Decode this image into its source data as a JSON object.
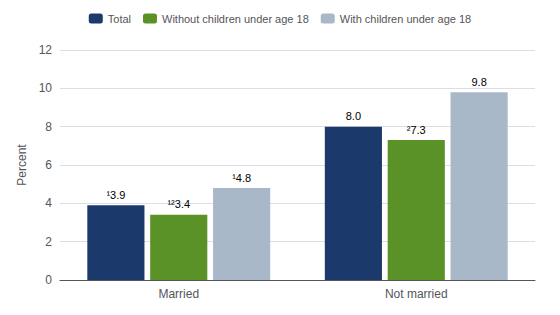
{
  "chart_data": {
    "type": "bar",
    "categories": [
      "Married",
      "Not married"
    ],
    "series": [
      {
        "name": "Total",
        "color": "#1b3a6b",
        "values": [
          3.9,
          8.0
        ],
        "value_labels": [
          "¹3.9",
          "8.0"
        ]
      },
      {
        "name": "Without children under age 18",
        "color": "#5a9227",
        "values": [
          3.4,
          7.3
        ],
        "value_labels": [
          "¹²3.4",
          "²7.3"
        ]
      },
      {
        "name": "With children under age 18",
        "color": "#a9b8c8",
        "values": [
          4.8,
          9.8
        ],
        "value_labels": [
          "¹4.8",
          "9.8"
        ]
      }
    ],
    "ylabel": "Percent",
    "ylim": [
      0,
      12
    ],
    "yticks": [
      0,
      2,
      4,
      6,
      8,
      10,
      12
    ],
    "grid": true,
    "legend": "top",
    "data_labels": true
  }
}
